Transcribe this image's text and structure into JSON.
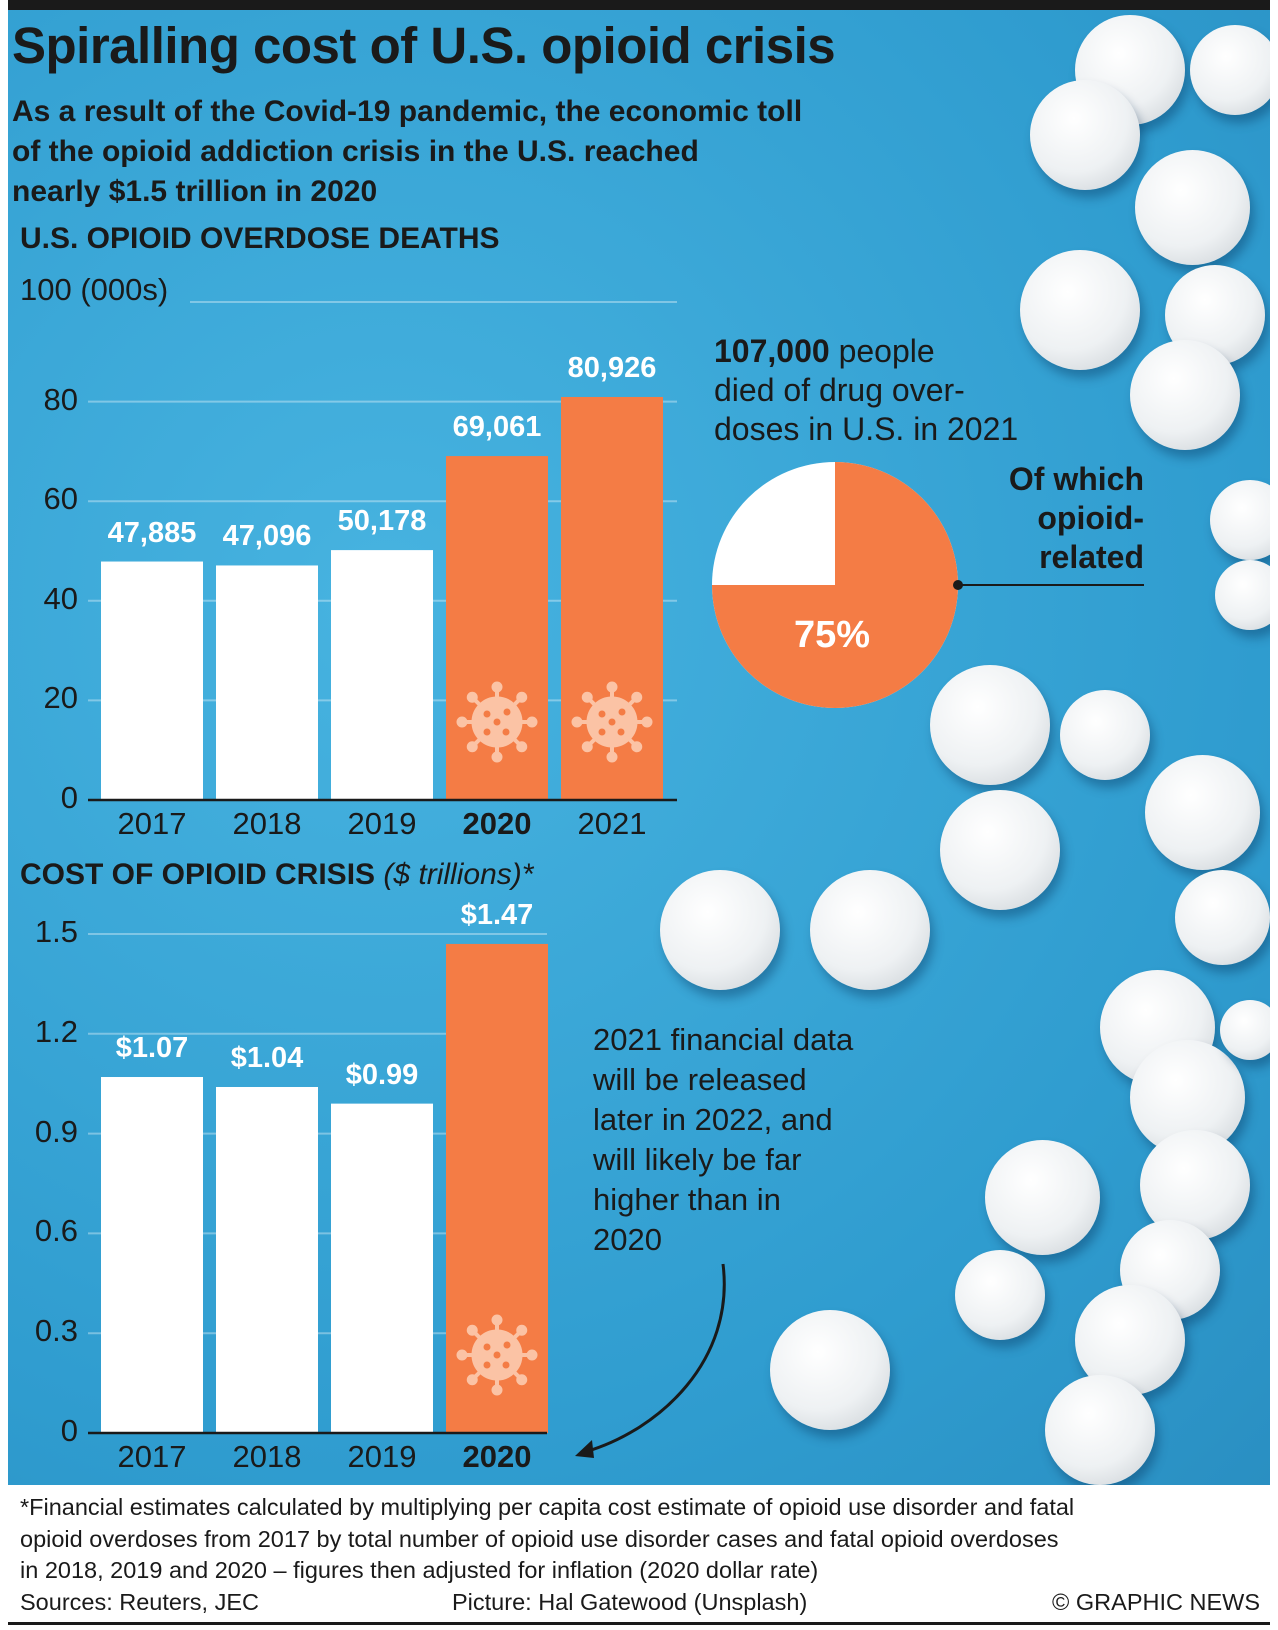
{
  "title": "Spiralling cost of U.S. opioid crisis",
  "subtitle": [
    "As a result of the Covid-19 pandemic, the economic toll",
    "of the opioid addiction crisis in the U.S. reached",
    "nearly $1.5 trillion in 2020"
  ],
  "colors": {
    "background": "#3aa6d6",
    "highlight": "#f47c45",
    "base": "#ffffff"
  },
  "chart_data": [
    {
      "type": "bar",
      "title": "U.S. OPIOID OVERDOSE DEATHS",
      "ylabel": "100 (000s)",
      "categories": [
        "2017",
        "2018",
        "2019",
        "2020",
        "2021"
      ],
      "values": [
        47885,
        47096,
        50178,
        69061,
        80926
      ],
      "labels": [
        "47,885",
        "47,096",
        "50,178",
        "69,061",
        "80,926"
      ],
      "highlighted": [
        false,
        false,
        false,
        true,
        true
      ],
      "bold_category": "2020",
      "ylim": [
        0,
        100000
      ],
      "yticks": [
        "0",
        "20",
        "40",
        "60",
        "80"
      ],
      "ytick_values": [
        0,
        20,
        40,
        60,
        80
      ],
      "grid": true,
      "icon": "virus-icon"
    },
    {
      "type": "pie",
      "title": "107,000 people died of drug overdoses in U.S. in 2021",
      "values": [
        75,
        25
      ],
      "labels": [
        "75%",
        ""
      ],
      "annotation": [
        "Of which",
        "opioid-",
        "related"
      ]
    },
    {
      "type": "bar",
      "title": "COST OF OPIOID CRISIS",
      "title_unit": "($ trillions)*",
      "categories": [
        "2017",
        "2018",
        "2019",
        "2020"
      ],
      "values": [
        1.07,
        1.04,
        0.99,
        1.47
      ],
      "labels": [
        "$1.07",
        "$1.04",
        "$0.99",
        "$1.47"
      ],
      "highlighted": [
        false,
        false,
        false,
        true
      ],
      "bold_category": "2020",
      "ylim": [
        0,
        1.5
      ],
      "yticks": [
        "0",
        "0.3",
        "0.6",
        "0.9",
        "1.2",
        "1.5"
      ],
      "ytick_values": [
        0,
        0.3,
        0.6,
        0.9,
        1.2,
        1.5
      ],
      "grid": true,
      "annotation": [
        "2021 financial data",
        "will be released",
        "later in 2022, and",
        "will likely be far",
        "higher than in",
        "2020"
      ]
    }
  ],
  "pie_text": {
    "bold": "107,000",
    "line1_rest": " people",
    "line2": "died of drug over-",
    "line3": "doses in U.S. in 2021"
  },
  "footer": {
    "note": [
      "*Financial estimates calculated by multiplying per capita cost estimate of opioid use disorder and fatal",
      "opioid overdoses from 2017 by total number of opioid use disorder cases and fatal opioid overdoses",
      "in 2018, 2019 and 2020 – figures then adjusted for inflation (2020 dollar rate)"
    ],
    "sources": "Sources: Reuters, JEC",
    "picture": "Picture: Hal Gatewood (Unsplash)",
    "credit": "© GRAPHIC NEWS"
  }
}
